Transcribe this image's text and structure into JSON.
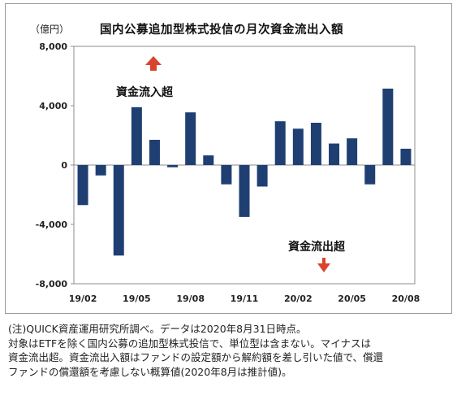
{
  "chart_data": {
    "type": "bar",
    "title": "国内公募追加型株式投信の月次資金流出入額",
    "unit_label": "（億円）",
    "categories": [
      "19/02",
      "19/03",
      "19/04",
      "19/05",
      "19/06",
      "19/07",
      "19/08",
      "19/09",
      "19/10",
      "19/11",
      "19/12",
      "20/01",
      "20/02",
      "20/03",
      "20/04",
      "20/05",
      "20/06",
      "20/07",
      "20/08"
    ],
    "x_tick_labels": [
      "19/02",
      "19/05",
      "19/08",
      "19/11",
      "20/02",
      "20/05",
      "20/08"
    ],
    "series": [
      {
        "values": [
          -2700,
          -700,
          -6100,
          3900,
          1700,
          -150,
          3550,
          650,
          -1300,
          -3500,
          -1450,
          2950,
          2450,
          2850,
          1450,
          1800,
          -1300,
          5150,
          1100
        ]
      }
    ],
    "ylim": [
      -8000,
      8000
    ],
    "y_ticks": [
      8000,
      4000,
      0,
      -4000,
      -8000
    ],
    "y_tick_labels": [
      "8,000",
      "4,000",
      "0",
      "-4,000",
      "-8,000"
    ],
    "grid": false,
    "bar_color": "#1f3f73",
    "annotations": {
      "inflow": {
        "text": "資金流入超",
        "arrow_color": "#d9442f",
        "direction": "up"
      },
      "outflow": {
        "text": "資金流出超",
        "arrow_color": "#d9442f",
        "direction": "down"
      }
    }
  },
  "notes": [
    "(注)QUICK資産運用研究所調べ。データは2020年8月31日時点。",
    "対象はETFを除く国内公募の追加型株式投信で、単位型は含まない。マイナスは",
    "資金流出超。資金流出入額はファンドの設定額から解約額を差し引いた値で、償還",
    "ファンドの償還額を考慮しない概算値(2020年8月は推計値)。"
  ]
}
